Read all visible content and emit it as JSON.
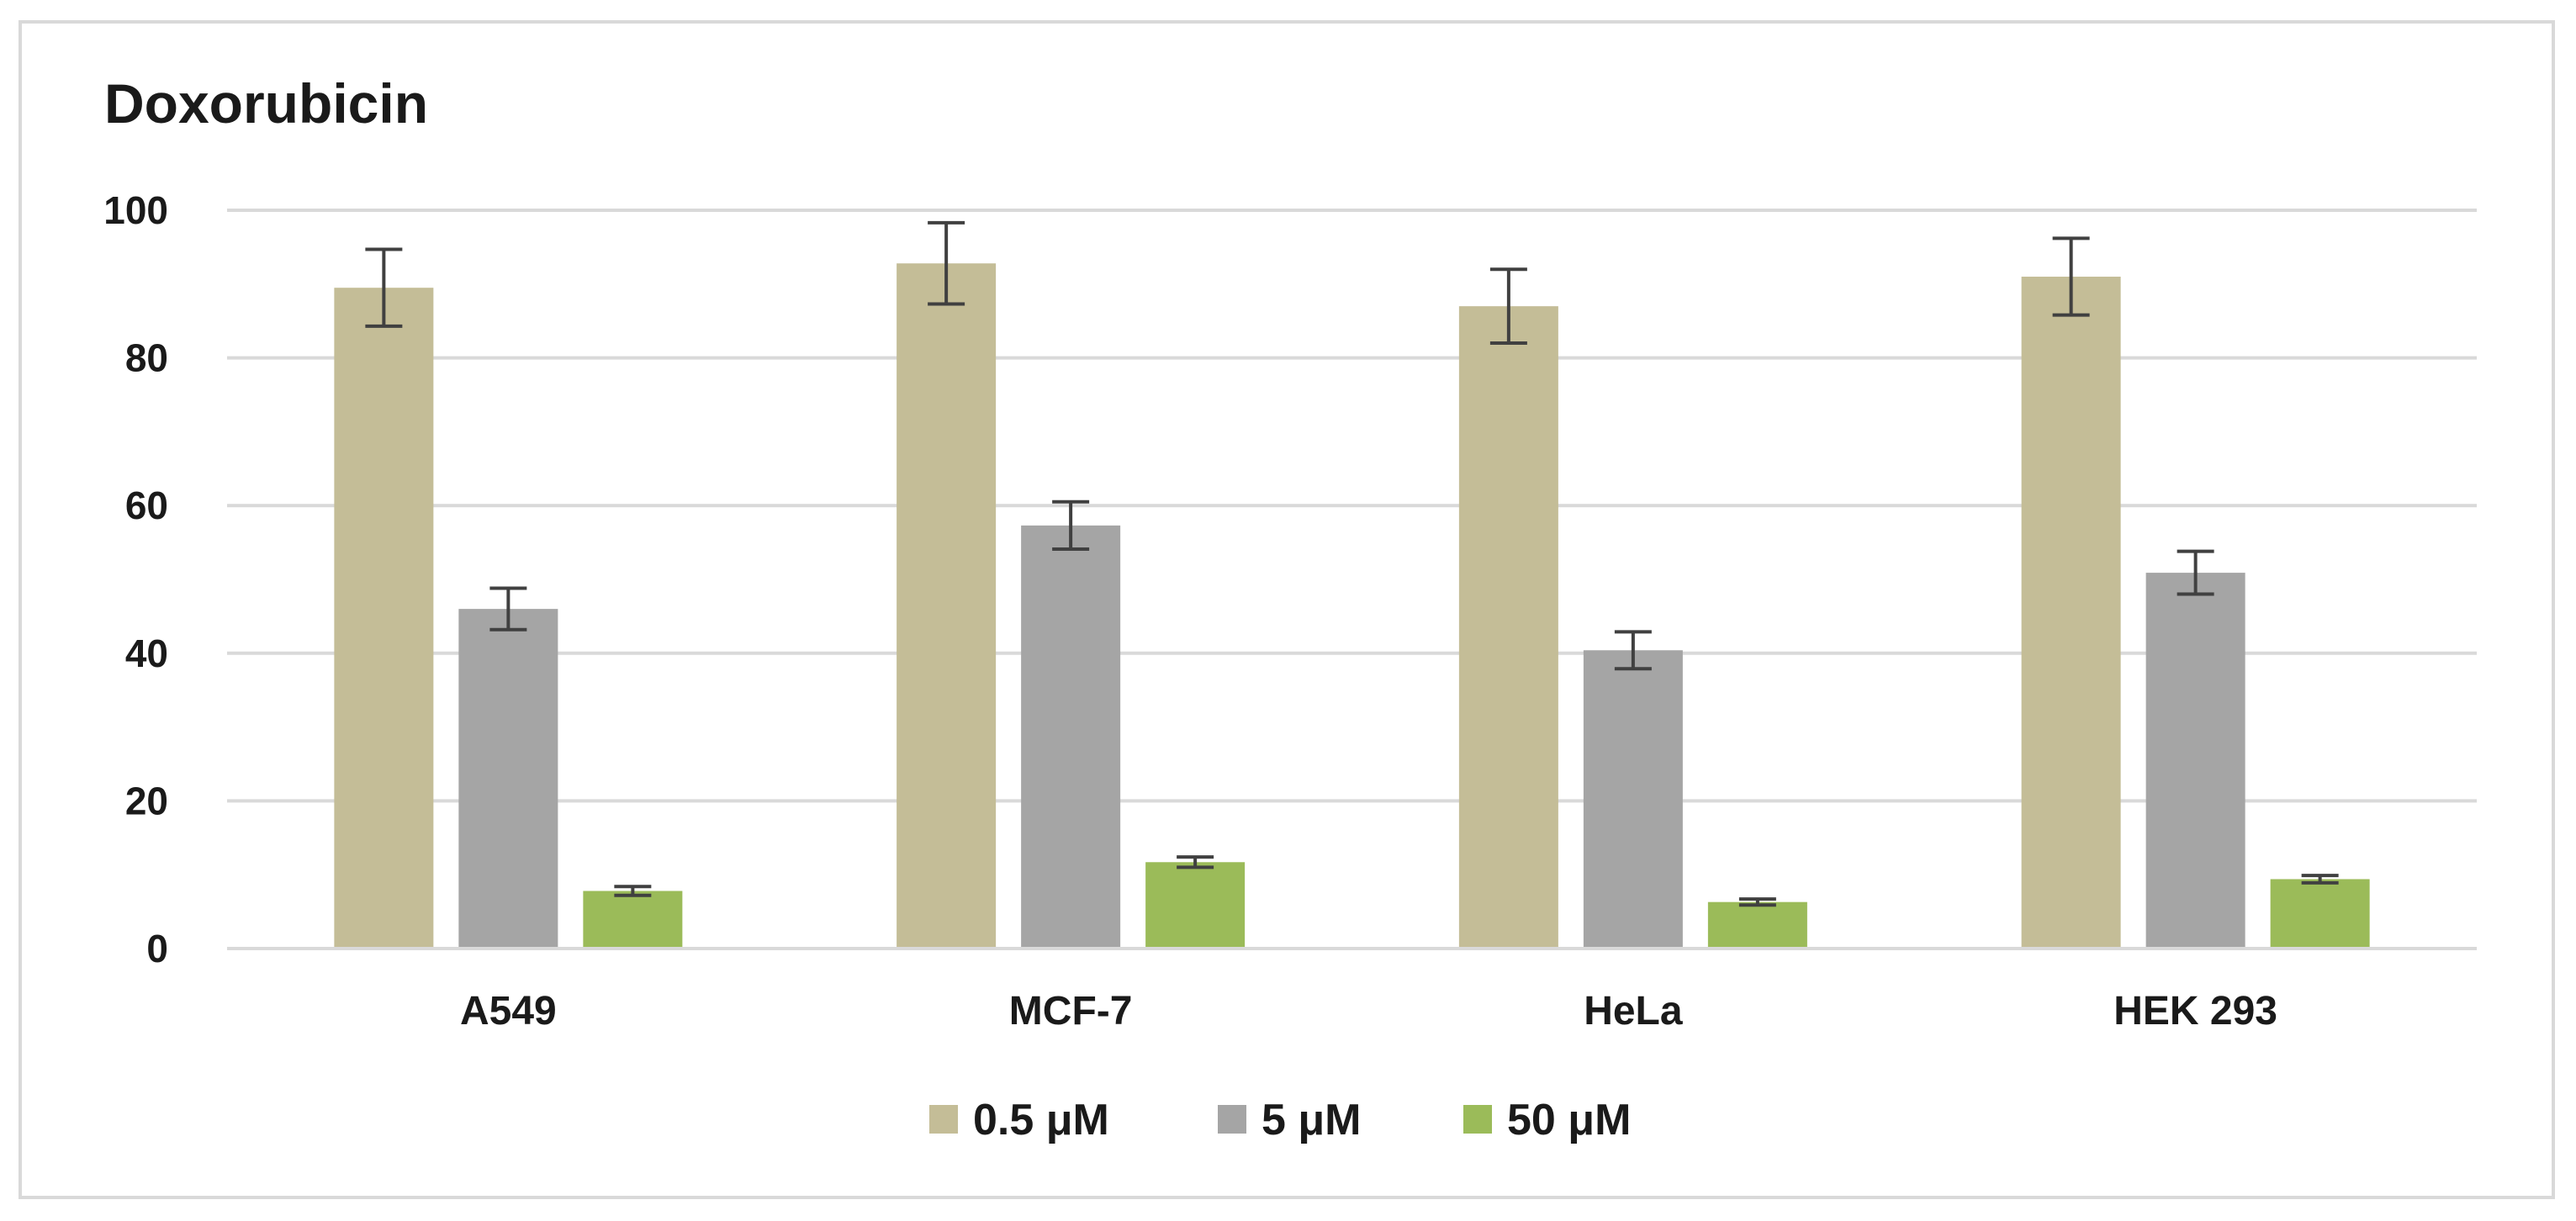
{
  "chart_data": {
    "type": "bar",
    "title": "Doxorubicin",
    "xlabel": "",
    "ylabel": "",
    "ylim": [
      0,
      100
    ],
    "yticks": [
      0,
      20,
      40,
      60,
      80,
      100
    ],
    "grid": true,
    "legend_position": "bottom",
    "categories": [
      "A549",
      "MCF-7",
      "HeLa",
      "HEK 293"
    ],
    "series": [
      {
        "name": "0.5 μM",
        "color": "#c4bd97",
        "values": [
          89.5,
          92.8,
          87.0,
          91.0
        ],
        "errors": [
          5.2,
          5.5,
          5.0,
          5.2
        ]
      },
      {
        "name": "5 μM",
        "color": "#a5a5a5",
        "values": [
          46.0,
          57.3,
          40.4,
          50.9
        ],
        "errors": [
          2.8,
          3.2,
          2.5,
          2.9
        ]
      },
      {
        "name": "50 μM",
        "color": "#9bbb59",
        "values": [
          7.8,
          11.7,
          6.3,
          9.4
        ],
        "errors": [
          0.6,
          0.7,
          0.4,
          0.5
        ]
      }
    ]
  }
}
